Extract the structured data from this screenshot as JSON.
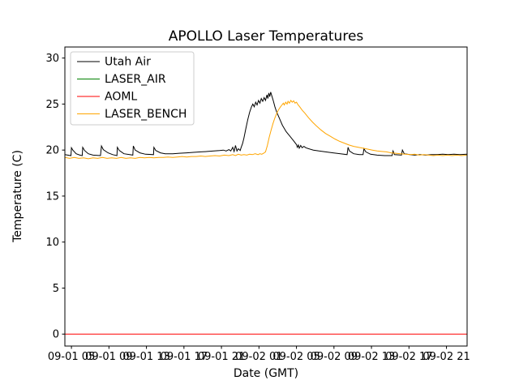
{
  "chart_data": {
    "type": "line",
    "title": "APOLLO Laser Temperatures",
    "xlabel": "Date (GMT)",
    "ylabel": "Temperature (C)",
    "x_unit": "hours since 09-01 00:00 GMT",
    "xlim": [
      4.3,
      47.2
    ],
    "ylim": [
      -1.3,
      31.2
    ],
    "grid": false,
    "legend_position": "upper left",
    "xticks": {
      "values": [
        5,
        9,
        13,
        17,
        21,
        25,
        29,
        33,
        37,
        41,
        45
      ],
      "labels": [
        "09-01 05",
        "09-01 09",
        "09-01 13",
        "09-01 17",
        "09-01 21",
        "09-02 01",
        "09-02 05",
        "09-02 09",
        "09-02 13",
        "09-02 17",
        "09-02 21"
      ]
    },
    "yticks": [
      0,
      5,
      10,
      15,
      20,
      25,
      30
    ],
    "series": [
      {
        "name": "Utah Air",
        "color": "#000000",
        "points": [
          [
            4.3,
            19.5
          ],
          [
            4.6,
            19.45
          ],
          [
            4.95,
            19.4
          ],
          [
            5.0,
            20.25
          ],
          [
            5.15,
            20.0
          ],
          [
            5.5,
            19.6
          ],
          [
            5.9,
            19.45
          ],
          [
            6.15,
            19.4
          ],
          [
            6.2,
            20.3
          ],
          [
            6.4,
            19.95
          ],
          [
            6.8,
            19.6
          ],
          [
            7.3,
            19.45
          ],
          [
            8.1,
            19.4
          ],
          [
            8.2,
            20.45
          ],
          [
            8.4,
            20.05
          ],
          [
            8.9,
            19.7
          ],
          [
            9.4,
            19.5
          ],
          [
            9.85,
            19.4
          ],
          [
            9.9,
            20.3
          ],
          [
            10.1,
            19.95
          ],
          [
            10.6,
            19.6
          ],
          [
            11.2,
            19.5
          ],
          [
            11.55,
            19.45
          ],
          [
            11.6,
            20.45
          ],
          [
            11.8,
            20.0
          ],
          [
            12.3,
            19.7
          ],
          [
            12.9,
            19.55
          ],
          [
            13.75,
            19.5
          ],
          [
            13.8,
            20.3
          ],
          [
            14.0,
            19.95
          ],
          [
            14.5,
            19.7
          ],
          [
            15.0,
            19.6
          ],
          [
            15.8,
            19.6
          ],
          [
            16.5,
            19.65
          ],
          [
            17.3,
            19.7
          ],
          [
            18.0,
            19.75
          ],
          [
            18.8,
            19.8
          ],
          [
            19.5,
            19.85
          ],
          [
            20.2,
            19.9
          ],
          [
            20.8,
            19.95
          ],
          [
            21.2,
            20.0
          ],
          [
            21.5,
            19.9
          ],
          [
            21.8,
            20.05
          ],
          [
            22.0,
            19.9
          ],
          [
            22.2,
            20.3
          ],
          [
            22.35,
            19.85
          ],
          [
            22.5,
            20.5
          ],
          [
            22.65,
            19.9
          ],
          [
            22.8,
            20.15
          ],
          [
            23.0,
            19.95
          ],
          [
            23.1,
            20.3
          ],
          [
            23.25,
            20.7
          ],
          [
            23.4,
            21.3
          ],
          [
            23.6,
            22.3
          ],
          [
            23.8,
            23.3
          ],
          [
            24.0,
            24.1
          ],
          [
            24.2,
            24.7
          ],
          [
            24.35,
            25.0
          ],
          [
            24.5,
            24.7
          ],
          [
            24.65,
            25.2
          ],
          [
            24.8,
            24.9
          ],
          [
            24.95,
            25.4
          ],
          [
            25.1,
            25.1
          ],
          [
            25.25,
            25.6
          ],
          [
            25.4,
            25.3
          ],
          [
            25.55,
            25.7
          ],
          [
            25.7,
            25.4
          ],
          [
            25.85,
            26.0
          ],
          [
            25.95,
            25.6
          ],
          [
            26.05,
            26.2
          ],
          [
            26.15,
            25.8
          ],
          [
            26.25,
            26.3
          ],
          [
            26.4,
            25.8
          ],
          [
            26.55,
            25.3
          ],
          [
            26.7,
            24.7
          ],
          [
            26.9,
            24.1
          ],
          [
            27.2,
            23.4
          ],
          [
            27.5,
            22.7
          ],
          [
            27.9,
            22.0
          ],
          [
            28.3,
            21.5
          ],
          [
            28.7,
            21.0
          ],
          [
            29.0,
            20.6
          ],
          [
            29.1,
            20.3
          ],
          [
            29.2,
            20.55
          ],
          [
            29.3,
            20.2
          ],
          [
            29.45,
            20.5
          ],
          [
            29.6,
            20.25
          ],
          [
            29.8,
            20.4
          ],
          [
            30.0,
            20.25
          ],
          [
            30.3,
            20.15
          ],
          [
            30.8,
            20.0
          ],
          [
            31.4,
            19.9
          ],
          [
            32.1,
            19.8
          ],
          [
            32.9,
            19.7
          ],
          [
            33.7,
            19.6
          ],
          [
            34.4,
            19.5
          ],
          [
            34.5,
            20.3
          ],
          [
            34.65,
            19.9
          ],
          [
            35.1,
            19.6
          ],
          [
            35.7,
            19.5
          ],
          [
            36.1,
            19.5
          ],
          [
            36.2,
            20.15
          ],
          [
            36.4,
            19.8
          ],
          [
            36.9,
            19.55
          ],
          [
            37.6,
            19.45
          ],
          [
            38.4,
            19.4
          ],
          [
            39.2,
            19.4
          ],
          [
            39.3,
            19.9
          ],
          [
            39.45,
            19.5
          ],
          [
            40.2,
            19.45
          ],
          [
            40.3,
            20.0
          ],
          [
            40.5,
            19.6
          ],
          [
            41.1,
            19.5
          ],
          [
            41.6,
            19.45
          ],
          [
            42.2,
            19.5
          ],
          [
            42.8,
            19.45
          ],
          [
            43.4,
            19.5
          ],
          [
            44.0,
            19.5
          ],
          [
            44.6,
            19.55
          ],
          [
            45.2,
            19.5
          ],
          [
            45.8,
            19.55
          ],
          [
            46.4,
            19.5
          ],
          [
            47.2,
            19.55
          ]
        ]
      },
      {
        "name": "LASER_AIR",
        "color": "#008000",
        "points": []
      },
      {
        "name": "AOML",
        "color": "#ff0000",
        "points": [
          [
            4.3,
            0
          ],
          [
            47.2,
            0
          ]
        ]
      },
      {
        "name": "LASER_BENCH",
        "color": "#ffa500",
        "points": [
          [
            4.3,
            19.2
          ],
          [
            4.8,
            19.1
          ],
          [
            5.3,
            19.2
          ],
          [
            5.8,
            19.1
          ],
          [
            6.3,
            19.15
          ],
          [
            6.8,
            19.05
          ],
          [
            7.3,
            19.15
          ],
          [
            7.8,
            19.1
          ],
          [
            8.3,
            19.2
          ],
          [
            8.8,
            19.1
          ],
          [
            9.3,
            19.15
          ],
          [
            9.8,
            19.1
          ],
          [
            10.3,
            19.2
          ],
          [
            10.8,
            19.1
          ],
          [
            11.3,
            19.15
          ],
          [
            11.8,
            19.1
          ],
          [
            12.3,
            19.2
          ],
          [
            12.8,
            19.15
          ],
          [
            13.3,
            19.2
          ],
          [
            13.8,
            19.15
          ],
          [
            14.3,
            19.2
          ],
          [
            14.8,
            19.2
          ],
          [
            15.3,
            19.25
          ],
          [
            15.8,
            19.2
          ],
          [
            16.3,
            19.25
          ],
          [
            16.8,
            19.3
          ],
          [
            17.3,
            19.25
          ],
          [
            17.8,
            19.3
          ],
          [
            18.3,
            19.3
          ],
          [
            18.8,
            19.35
          ],
          [
            19.3,
            19.3
          ],
          [
            19.8,
            19.35
          ],
          [
            20.3,
            19.4
          ],
          [
            20.8,
            19.35
          ],
          [
            21.3,
            19.45
          ],
          [
            21.8,
            19.4
          ],
          [
            22.2,
            19.5
          ],
          [
            22.5,
            19.4
          ],
          [
            22.8,
            19.55
          ],
          [
            23.1,
            19.45
          ],
          [
            23.4,
            19.5
          ],
          [
            23.7,
            19.45
          ],
          [
            24.0,
            19.55
          ],
          [
            24.3,
            19.5
          ],
          [
            24.6,
            19.6
          ],
          [
            24.9,
            19.5
          ],
          [
            25.1,
            19.6
          ],
          [
            25.3,
            19.55
          ],
          [
            25.5,
            19.65
          ],
          [
            25.7,
            19.8
          ],
          [
            25.9,
            20.5
          ],
          [
            26.1,
            21.4
          ],
          [
            26.3,
            22.2
          ],
          [
            26.5,
            22.9
          ],
          [
            26.7,
            23.5
          ],
          [
            26.9,
            24.0
          ],
          [
            27.1,
            24.4
          ],
          [
            27.3,
            24.7
          ],
          [
            27.45,
            24.9
          ],
          [
            27.6,
            25.1
          ],
          [
            27.7,
            24.9
          ],
          [
            27.85,
            25.2
          ],
          [
            28.0,
            25.0
          ],
          [
            28.1,
            25.3
          ],
          [
            28.25,
            25.1
          ],
          [
            28.4,
            25.4
          ],
          [
            28.55,
            25.2
          ],
          [
            28.7,
            25.35
          ],
          [
            28.85,
            25.1
          ],
          [
            29.0,
            25.2
          ],
          [
            29.15,
            24.95
          ],
          [
            29.35,
            24.7
          ],
          [
            29.6,
            24.35
          ],
          [
            29.9,
            24.0
          ],
          [
            30.3,
            23.5
          ],
          [
            30.7,
            23.05
          ],
          [
            31.1,
            22.65
          ],
          [
            31.6,
            22.2
          ],
          [
            32.1,
            21.8
          ],
          [
            32.6,
            21.5
          ],
          [
            33.1,
            21.2
          ],
          [
            33.6,
            20.95
          ],
          [
            34.1,
            20.75
          ],
          [
            34.6,
            20.55
          ],
          [
            35.1,
            20.4
          ],
          [
            35.6,
            20.3
          ],
          [
            36.1,
            20.2
          ],
          [
            36.6,
            20.1
          ],
          [
            37.1,
            20.0
          ],
          [
            37.6,
            19.9
          ],
          [
            38.1,
            19.85
          ],
          [
            38.6,
            19.8
          ],
          [
            39.1,
            19.7
          ],
          [
            39.6,
            19.65
          ],
          [
            40.1,
            19.6
          ],
          [
            40.6,
            19.55
          ],
          [
            41.1,
            19.5
          ],
          [
            41.6,
            19.55
          ],
          [
            42.1,
            19.45
          ],
          [
            42.6,
            19.5
          ],
          [
            43.1,
            19.45
          ],
          [
            43.6,
            19.4
          ],
          [
            44.1,
            19.45
          ],
          [
            44.6,
            19.4
          ],
          [
            45.1,
            19.45
          ],
          [
            45.6,
            19.4
          ],
          [
            46.1,
            19.45
          ],
          [
            46.6,
            19.4
          ],
          [
            47.2,
            19.45
          ]
        ]
      }
    ]
  }
}
